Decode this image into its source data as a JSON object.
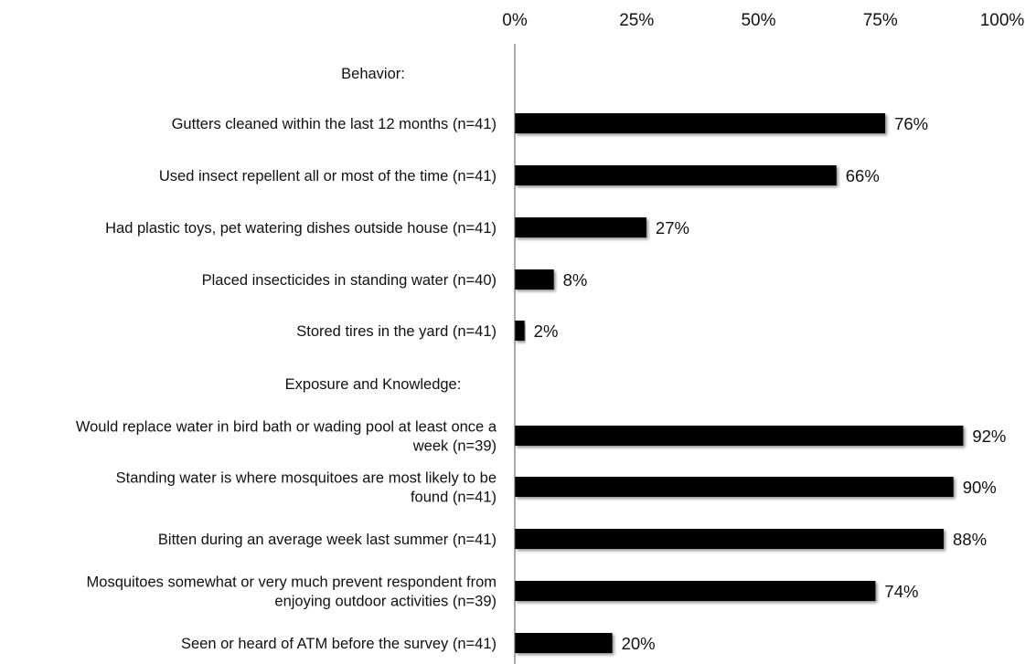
{
  "chart_data": {
    "type": "bar",
    "orientation": "horizontal",
    "xlim": [
      0,
      100
    ],
    "x_ticks": [
      "0%",
      "25%",
      "50%",
      "75%",
      "100%"
    ],
    "x_tick_values": [
      0,
      25,
      50,
      75,
      100
    ],
    "axis_position": "top",
    "grid": false,
    "bar_color": "#000000",
    "categories": [
      {
        "lines": [
          "Behavior:"
        ],
        "value": null,
        "label": "",
        "heading": true
      },
      {
        "lines": [
          "Gutters cleaned within the last 12 months (n=41)"
        ],
        "value": 76,
        "label": "76%"
      },
      {
        "lines": [
          "Used insect repellent all or most of the time (n=41)"
        ],
        "value": 66,
        "label": "66%"
      },
      {
        "lines": [
          "Had plastic toys, pet watering dishes outside house (n=41)"
        ],
        "value": 27,
        "label": "27%"
      },
      {
        "lines": [
          "Placed insecticides in standing water (n=40)"
        ],
        "value": 8,
        "label": "8%"
      },
      {
        "lines": [
          "Stored tires in the yard (n=41)"
        ],
        "value": 2,
        "label": "2%"
      },
      {
        "lines": [
          "Exposure and Knowledge:"
        ],
        "value": null,
        "label": "",
        "heading": true
      },
      {
        "lines": [
          "Would replace water in bird bath or wading pool at least once a",
          "week (n=39)"
        ],
        "value": 92,
        "label": "92%"
      },
      {
        "lines": [
          "Standing water is where mosquitoes are most likely to be",
          "found (n=41)"
        ],
        "value": 90,
        "label": "90%"
      },
      {
        "lines": [
          "Bitten during an average week last summer (n=41)"
        ],
        "value": 88,
        "label": "88%"
      },
      {
        "lines": [
          "Mosquitoes somewhat or very much prevent respondent from",
          "enjoying outdoor activities (n=39)"
        ],
        "value": 74,
        "label": "74%"
      },
      {
        "lines": [
          "Seen or heard of ATM before the survey (n=41)"
        ],
        "value": 20,
        "label": "20%"
      }
    ]
  }
}
